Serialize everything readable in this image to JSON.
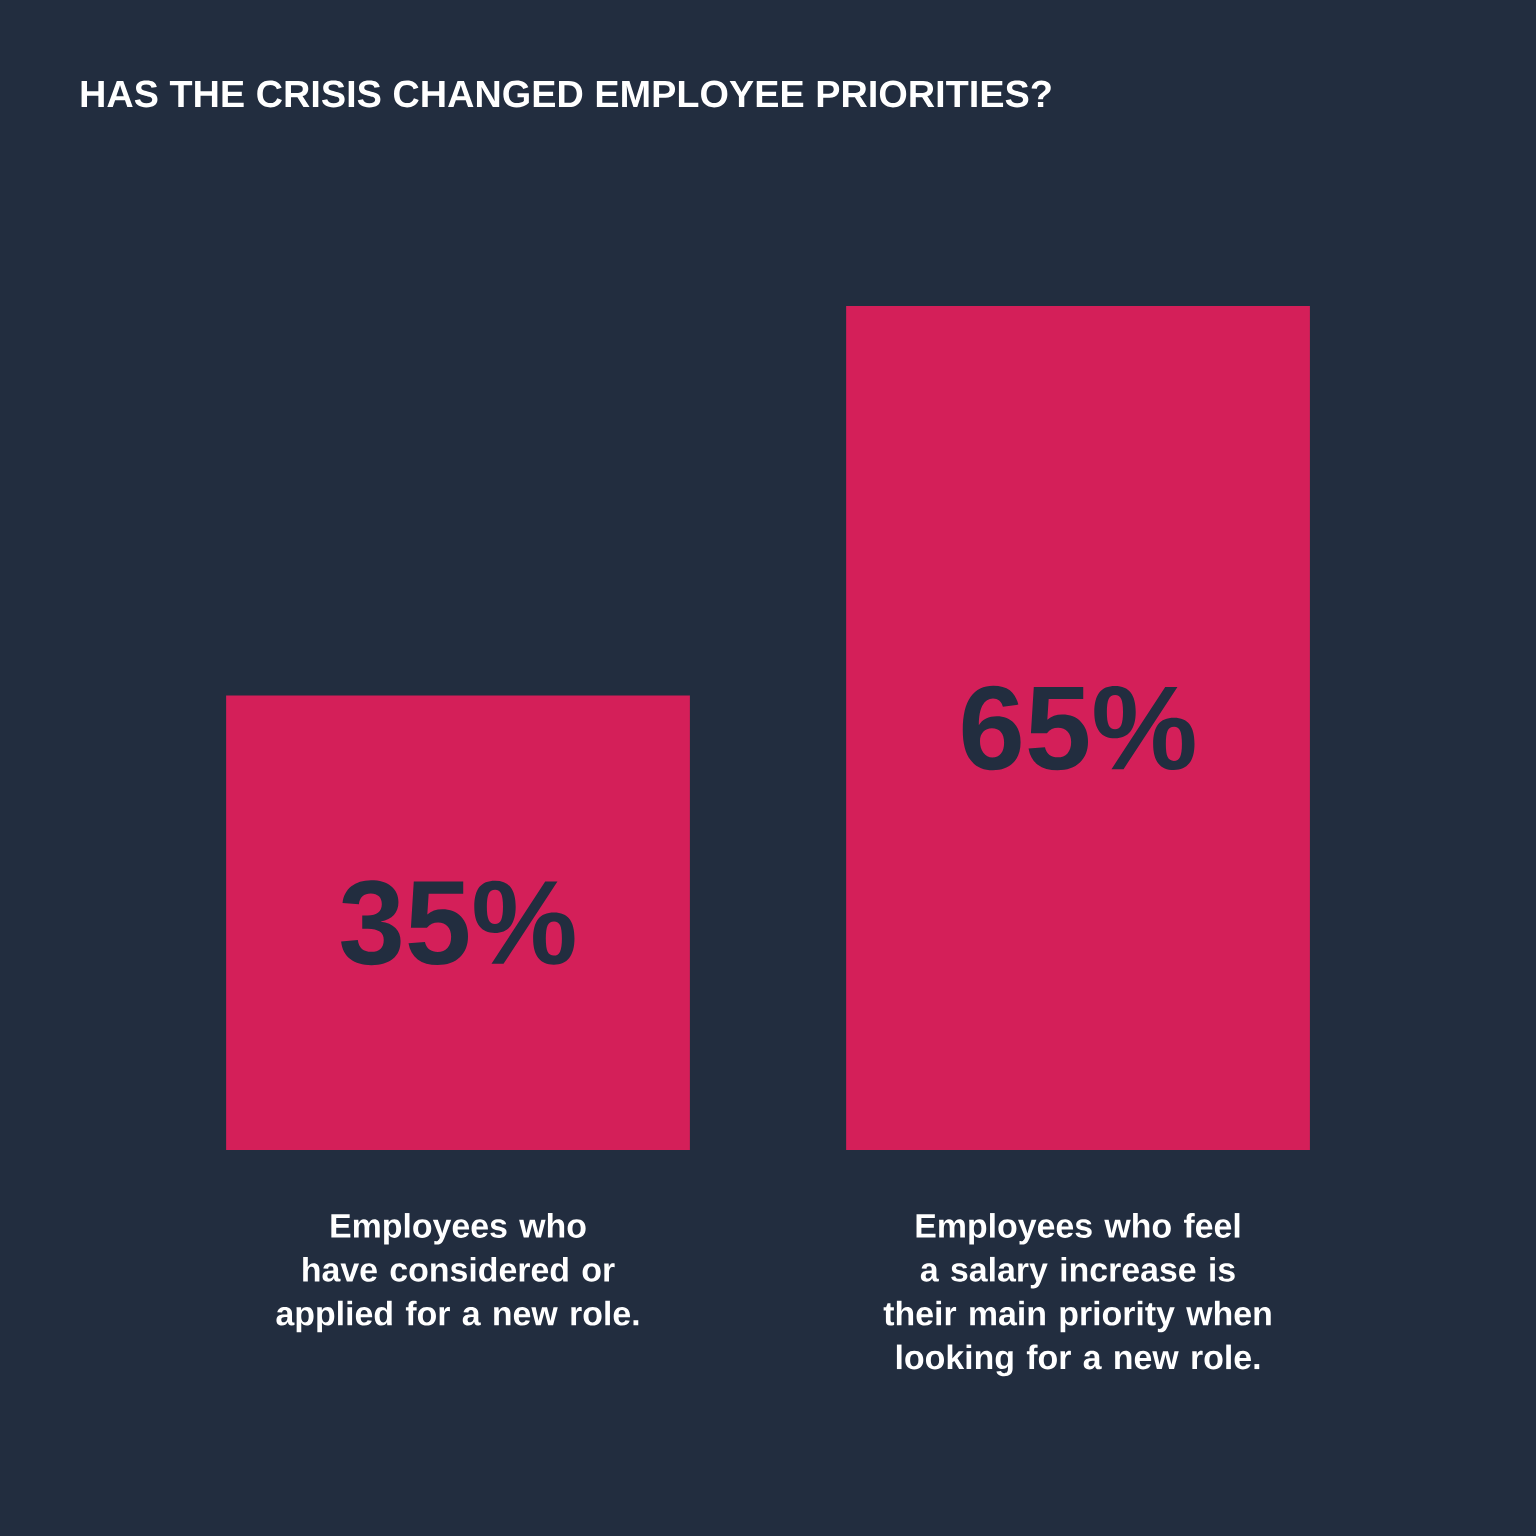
{
  "chart_data": {
    "type": "bar",
    "title": "HAS THE CRISIS CHANGED EMPLOYEE PRIORITIES?",
    "categories": [
      "Employees who have considered or applied for a new role.",
      "Employees who feel a salary increase is their main priority when looking for a new role."
    ],
    "values": [
      35,
      65
    ],
    "color": "#d41f59",
    "value_labels": [
      "35%",
      "65%"
    ]
  }
}
